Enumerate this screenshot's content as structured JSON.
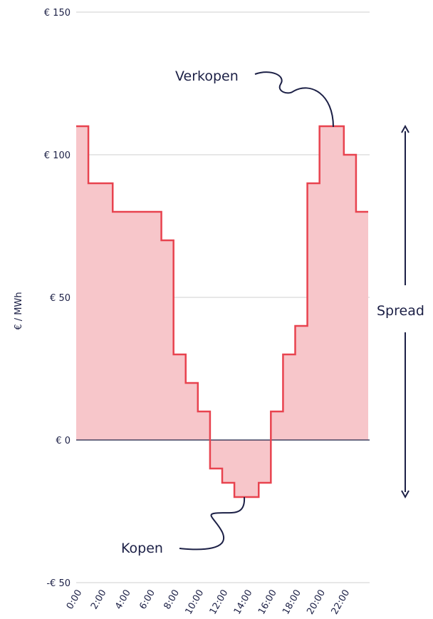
{
  "chart_data": {
    "type": "line",
    "step": true,
    "x": [
      "0:00",
      "1:00",
      "2:00",
      "3:00",
      "4:00",
      "5:00",
      "6:00",
      "7:00",
      "8:00",
      "9:00",
      "10:00",
      "11:00",
      "12:00",
      "13:00",
      "14:00",
      "15:00",
      "16:00",
      "17:00",
      "18:00",
      "19:00",
      "20:00",
      "21:00",
      "22:00",
      "23:00"
    ],
    "x_tick_labels": [
      "0:00",
      "2:00",
      "4:00",
      "6:00",
      "8:00",
      "10:00",
      "12:00",
      "14:00",
      "16:00",
      "18:00",
      "20:00",
      "22:00"
    ],
    "series": [
      {
        "values": [
          110,
          90,
          90,
          80,
          80,
          80,
          80,
          70,
          30,
          20,
          10,
          -10,
          -15,
          -20,
          -20,
          -15,
          10,
          30,
          40,
          90,
          110,
          110,
          100,
          80
        ]
      }
    ],
    "ylabel": "€ / MWh",
    "ylim": [
      -50,
      150
    ],
    "y_ticks": [
      {
        "value": 150,
        "label": "€ 150"
      },
      {
        "value": 100,
        "label": "€ 100"
      },
      {
        "value": 50,
        "label": "€ 50"
      },
      {
        "value": 0,
        "label": "€ 0"
      },
      {
        "value": -50,
        "label": "-€ 50"
      }
    ],
    "grid": true,
    "colors": {
      "line": "#e8434f",
      "fill": "#f7c6ca",
      "text": "#1c2046",
      "grid": "#cfcfcf",
      "zero": "#1c2046"
    },
    "annotations": {
      "sell": "Verkopen",
      "buy": "Kopen",
      "spread": "Spread"
    }
  }
}
